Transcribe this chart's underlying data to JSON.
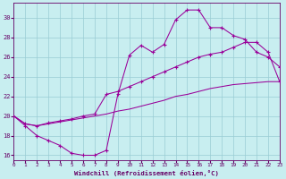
{
  "xlabel": "Windchill (Refroidissement éolien,°C)",
  "bg_color": "#c8eef0",
  "grid_color": "#99ccd4",
  "line_color": "#990099",
  "xlim": [
    0,
    23
  ],
  "ylim": [
    15.5,
    31.5
  ],
  "xticks": [
    0,
    1,
    2,
    3,
    4,
    5,
    6,
    7,
    8,
    9,
    10,
    11,
    12,
    13,
    14,
    15,
    16,
    17,
    18,
    19,
    20,
    21,
    22,
    23
  ],
  "yticks": [
    16,
    18,
    20,
    22,
    24,
    26,
    28,
    30
  ],
  "curve1_x": [
    0,
    1,
    2,
    3,
    4,
    5,
    6,
    7,
    8,
    9,
    10,
    11,
    12,
    13,
    14,
    15,
    16,
    17,
    18,
    19,
    20,
    21,
    22,
    23
  ],
  "curve1_y": [
    20.0,
    19.0,
    18.0,
    17.5,
    17.0,
    16.2,
    16.0,
    16.0,
    16.5,
    22.2,
    26.2,
    27.2,
    26.5,
    27.3,
    29.8,
    30.8,
    30.8,
    29.0,
    29.0,
    28.2,
    27.8,
    26.5,
    26.0,
    25.0
  ],
  "curve2_x": [
    0,
    1,
    2,
    3,
    4,
    5,
    6,
    7,
    8,
    9,
    10,
    11,
    12,
    13,
    14,
    15,
    16,
    17,
    18,
    19,
    20,
    21,
    22,
    23
  ],
  "curve2_y": [
    20.0,
    19.2,
    19.0,
    19.3,
    19.5,
    19.7,
    20.0,
    20.2,
    22.2,
    22.5,
    23.0,
    23.5,
    24.0,
    24.5,
    25.0,
    25.5,
    26.0,
    26.3,
    26.5,
    27.0,
    27.5,
    27.5,
    26.5,
    23.5
  ],
  "curve3_x": [
    0,
    1,
    2,
    3,
    4,
    5,
    6,
    7,
    8,
    9,
    10,
    11,
    12,
    13,
    14,
    15,
    16,
    17,
    18,
    19,
    20,
    21,
    22,
    23
  ],
  "curve3_y": [
    20.0,
    19.2,
    19.0,
    19.2,
    19.4,
    19.6,
    19.8,
    20.0,
    20.2,
    20.5,
    20.7,
    21.0,
    21.3,
    21.6,
    22.0,
    22.2,
    22.5,
    22.8,
    23.0,
    23.2,
    23.3,
    23.4,
    23.5,
    23.5
  ]
}
